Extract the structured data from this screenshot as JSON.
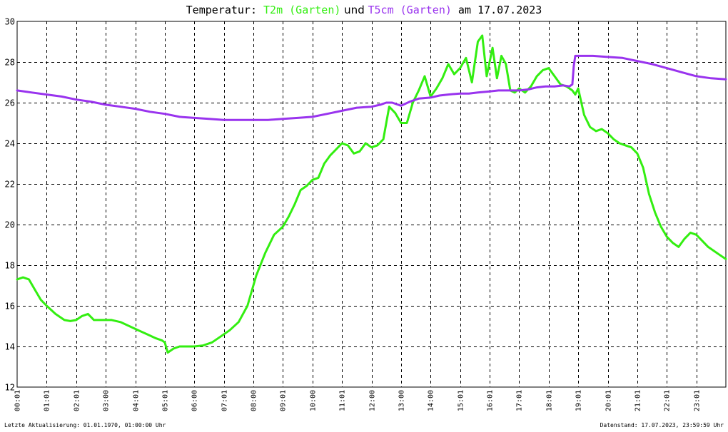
{
  "title": {
    "prefix": "Temperatur: ",
    "series1": "T2m (Garten)",
    "mid": " und ",
    "series2": "T5cm (Garten)",
    "suffix": " am 17.07.2023"
  },
  "footer": {
    "left": "Letzte Aktualisierung: 01.01.1970, 01:00:00 Uhr",
    "right": "Datenstand: 17.07.2023, 23:59:59 Uhr"
  },
  "colors": {
    "t2m": "#33ee11",
    "t5cm": "#9933ee",
    "grid": "#000000",
    "background": "#ffffff"
  },
  "chart_data": {
    "type": "line",
    "title": "Temperatur: T2m (Garten) und T5cm (Garten) am 17.07.2023",
    "xlabel": "",
    "ylabel": "",
    "xlim": [
      0,
      24
    ],
    "ylim": [
      12,
      30
    ],
    "grid": true,
    "legend": "in title",
    "x_ticks": [
      "00:01",
      "01:01",
      "02:01",
      "03:00",
      "04:01",
      "05:01",
      "06:00",
      "07:01",
      "08:00",
      "09:01",
      "10:00",
      "11:01",
      "12:00",
      "13:00",
      "14:00",
      "15:01",
      "16:01",
      "17:01",
      "18:01",
      "19:01",
      "20:01",
      "21:01",
      "22:01",
      "23:01"
    ],
    "y_ticks": [
      "12",
      "14",
      "16",
      "18",
      "20",
      "22",
      "24",
      "26",
      "28",
      "30"
    ],
    "series": [
      {
        "name": "T2m (Garten)",
        "x": [
          0,
          0.2,
          0.4,
          0.6,
          0.8,
          1.0,
          1.3,
          1.6,
          1.8,
          2.0,
          2.2,
          2.4,
          2.6,
          2.9,
          3.2,
          3.5,
          3.8,
          4.1,
          4.4,
          4.7,
          4.9,
          5.0,
          5.1,
          5.3,
          5.5,
          5.7,
          6.0,
          6.3,
          6.6,
          6.9,
          7.2,
          7.5,
          7.8,
          8.1,
          8.4,
          8.7,
          9.0,
          9.2,
          9.4,
          9.6,
          9.8,
          10.0,
          10.2,
          10.4,
          10.6,
          10.8,
          11.0,
          11.2,
          11.4,
          11.6,
          11.8,
          12.0,
          12.2,
          12.4,
          12.6,
          12.8,
          13.0,
          13.2,
          13.4,
          13.6,
          13.8,
          14.0,
          14.2,
          14.4,
          14.6,
          14.8,
          15.0,
          15.2,
          15.4,
          15.6,
          15.75,
          15.9,
          16.1,
          16.25,
          16.4,
          16.55,
          16.7,
          16.85,
          17.0,
          17.2,
          17.4,
          17.6,
          17.8,
          18.0,
          18.2,
          18.4,
          18.6,
          18.8,
          18.9,
          19.0,
          19.2,
          19.4,
          19.6,
          19.8,
          20.0,
          20.2,
          20.4,
          20.6,
          20.8,
          21.0,
          21.2,
          21.4,
          21.6,
          21.8,
          22.0,
          22.2,
          22.4,
          22.6,
          22.8,
          23.0,
          23.2,
          23.4,
          23.6,
          23.8,
          24.0
        ],
        "values": [
          17.3,
          17.4,
          17.3,
          16.8,
          16.3,
          16.0,
          15.6,
          15.3,
          15.25,
          15.3,
          15.5,
          15.6,
          15.3,
          15.3,
          15.3,
          15.2,
          15.0,
          14.8,
          14.6,
          14.4,
          14.3,
          14.2,
          13.7,
          13.9,
          14.0,
          14.0,
          14.0,
          14.05,
          14.2,
          14.5,
          14.8,
          15.2,
          16.0,
          17.5,
          18.6,
          19.5,
          19.9,
          20.4,
          21.0,
          21.7,
          21.9,
          22.2,
          22.3,
          23.0,
          23.4,
          23.7,
          24.0,
          23.9,
          23.5,
          23.6,
          24.0,
          23.8,
          23.9,
          24.2,
          25.8,
          25.5,
          25.0,
          25.0,
          26.0,
          26.6,
          27.3,
          26.3,
          26.7,
          27.2,
          27.9,
          27.4,
          27.7,
          28.2,
          27.0,
          29.0,
          29.3,
          27.3,
          28.7,
          27.2,
          28.3,
          27.9,
          26.6,
          26.5,
          26.7,
          26.5,
          26.8,
          27.3,
          27.6,
          27.7,
          27.3,
          26.9,
          26.8,
          26.6,
          26.4,
          26.7,
          25.4,
          24.8,
          24.6,
          24.7,
          24.5,
          24.2,
          24.0,
          23.9,
          23.8,
          23.5,
          22.8,
          21.5,
          20.6,
          19.9,
          19.4,
          19.1,
          18.9,
          19.3,
          19.6,
          19.5,
          19.2,
          18.9,
          18.7,
          18.5,
          18.3
        ]
      },
      {
        "name": "T5cm (Garten)",
        "x": [
          0,
          0.5,
          1.0,
          1.5,
          2.0,
          2.5,
          3.0,
          3.5,
          4.0,
          4.5,
          5.0,
          5.5,
          6.0,
          6.5,
          7.0,
          7.5,
          8.0,
          8.5,
          9.0,
          9.5,
          10.0,
          10.5,
          11.0,
          11.5,
          12.0,
          12.3,
          12.5,
          12.7,
          13.0,
          13.3,
          13.6,
          14.0,
          14.3,
          14.6,
          15.0,
          15.3,
          15.6,
          16.0,
          16.3,
          16.6,
          17.0,
          17.3,
          17.6,
          17.9,
          18.2,
          18.5,
          18.7,
          18.8,
          18.85,
          18.9,
          19.2,
          19.5,
          20.0,
          20.5,
          21.0,
          21.5,
          22.0,
          22.5,
          23.0,
          23.5,
          24.0
        ],
        "values": [
          26.6,
          26.5,
          26.4,
          26.3,
          26.15,
          26.05,
          25.9,
          25.8,
          25.7,
          25.55,
          25.45,
          25.3,
          25.25,
          25.2,
          25.15,
          25.15,
          25.15,
          25.15,
          25.2,
          25.25,
          25.3,
          25.45,
          25.6,
          25.75,
          25.8,
          25.9,
          26.0,
          26.0,
          25.85,
          26.05,
          26.2,
          26.25,
          26.35,
          26.4,
          26.45,
          26.45,
          26.5,
          26.55,
          26.6,
          26.6,
          26.6,
          26.65,
          26.75,
          26.8,
          26.8,
          26.85,
          26.8,
          26.9,
          27.8,
          28.3,
          28.3,
          28.3,
          28.25,
          28.2,
          28.05,
          27.9,
          27.7,
          27.5,
          27.3,
          27.2,
          27.15
        ]
      }
    ]
  }
}
